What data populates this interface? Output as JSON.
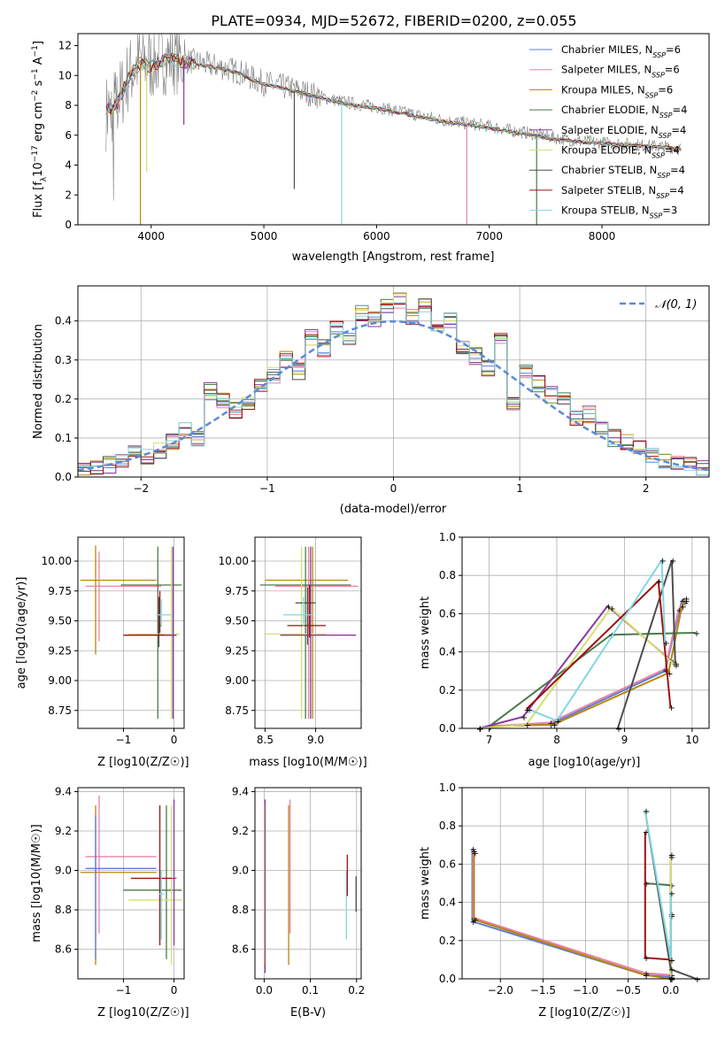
{
  "chart_data": [
    {
      "id": "spectrum",
      "type": "line",
      "title": "PLATE=0934, MJD=52672, FIBERID=0200, z=0.055",
      "xlabel": "wavelength [Angstrom, rest frame]",
      "ylabel": "Flux [f_λ 10^-17 erg cm^-2 s^-1 A^-1]",
      "xlim": [
        3350,
        8950
      ],
      "ylim": [
        0,
        12.8
      ],
      "xticks": [
        4000,
        5000,
        6000,
        7000,
        8000
      ],
      "yticks": [
        0,
        2,
        4,
        6,
        8,
        10,
        12
      ],
      "grid": false,
      "legend_position": "top-right",
      "data_series": {
        "name": "",
        "color": "#808080",
        "x": [
          3600,
          3700,
          3800,
          3900,
          4000,
          4100,
          4200,
          4300,
          4400,
          4500,
          4600,
          4700,
          4800,
          4900,
          5000,
          5200,
          5400,
          5600,
          5800,
          6000,
          6200,
          6400,
          6600,
          6800,
          7000,
          7200,
          7400,
          7600,
          7800,
          8000,
          8200,
          8400,
          8600,
          8700
        ],
        "y": [
          7.5,
          8.2,
          10.0,
          11.0,
          10.8,
          11.2,
          11.3,
          11.0,
          10.9,
          10.7,
          10.6,
          10.4,
          10.2,
          9.8,
          9.5,
          9.2,
          8.8,
          8.4,
          8.1,
          7.9,
          7.6,
          7.3,
          7.0,
          6.8,
          6.6,
          6.3,
          6.1,
          5.8,
          5.6,
          5.5,
          5.4,
          5.3,
          5.2,
          5.1
        ]
      },
      "model_x": [
        3600,
        3700,
        3800,
        3900,
        4000,
        4100,
        4200,
        4300,
        4400,
        4500,
        4600,
        4700,
        4800,
        4900,
        5000,
        5200,
        5400,
        5600,
        5800,
        6000,
        6200,
        6400,
        6600,
        6800,
        7000,
        7200,
        7400,
        7600,
        7800,
        8000,
        8200,
        8400,
        8600,
        8700
      ],
      "model_y": [
        7.6,
        8.1,
        9.9,
        10.8,
        10.6,
        11.0,
        11.1,
        10.9,
        10.8,
        10.6,
        10.5,
        10.3,
        10.1,
        9.7,
        9.4,
        9.1,
        8.7,
        8.3,
        8.0,
        7.8,
        7.5,
        7.2,
        6.9,
        6.7,
        6.5,
        6.2,
        6.0,
        5.7,
        5.55,
        5.45,
        5.35,
        5.25,
        5.15,
        5.05
      ],
      "series": [
        {
          "name": "Chabrier MILES, N_SSP=6",
          "color": "#5b7ed6",
          "base": "Chabrier MILES, N",
          "sub": "SSP",
          "rest": "=6"
        },
        {
          "name": "Salpeter MILES, N_SSP=6",
          "color": "#e882a8",
          "base": "Salpeter MILES, N",
          "sub": "SSP",
          "rest": "=6"
        },
        {
          "name": "Kroupa MILES, N_SSP=6",
          "color": "#b8860b",
          "base": "Kroupa MILES, N",
          "sub": "SSP",
          "rest": "=6"
        },
        {
          "name": "Chabrier ELODIE, N_SSP=4",
          "color": "#4a7a4a",
          "base": "Chabrier ELODIE, N",
          "sub": "SSP",
          "rest": "=4"
        },
        {
          "name": "Salpeter ELODIE, N_SSP=4",
          "color": "#8b3a9b",
          "base": "Salpeter ELODIE, N",
          "sub": "SSP",
          "rest": "=4"
        },
        {
          "name": "Kroupa ELODIE, N_SSP=4",
          "color": "#d4e070",
          "base": "Kroupa ELODIE, N",
          "sub": "SSP",
          "rest": "=4"
        },
        {
          "name": "Chabrier STELIB, N_SSP=4",
          "color": "#4d4d4d",
          "base": "Chabrier STELIB, N",
          "sub": "SSP",
          "rest": "=4"
        },
        {
          "name": "Salpeter STELIB, N_SSP=4",
          "color": "#a01010",
          "base": "Salpeter STELIB, N",
          "sub": "SSP",
          "rest": "=4"
        },
        {
          "name": "Kroupa STELIB, N_SSP=3",
          "color": "#80d8e0",
          "base": "Kroupa STELIB, N",
          "sub": "SSP",
          "rest": "=3"
        }
      ]
    },
    {
      "id": "residuals",
      "type": "bar",
      "title": "",
      "xlabel": "(data-model)/error",
      "ylabel": "Normed distribution",
      "xlim": [
        -2.5,
        2.5
      ],
      "ylim": [
        0,
        0.49
      ],
      "xticks": [
        -2,
        -1,
        0,
        1,
        2
      ],
      "yticks": [
        0.0,
        0.1,
        0.2,
        0.3,
        0.4
      ],
      "grid": true,
      "legend": "𝒩(0, 1)",
      "legend_position": "top-right",
      "bins": [
        -2.5,
        -2.4,
        -2.3,
        -2.2,
        -2.1,
        -2.0,
        -1.9,
        -1.8,
        -1.7,
        -1.6,
        -1.5,
        -1.4,
        -1.3,
        -1.2,
        -1.1,
        -1.0,
        -0.9,
        -0.8,
        -0.7,
        -0.6,
        -0.5,
        -0.4,
        -0.3,
        -0.2,
        -0.1,
        0.0,
        0.1,
        0.2,
        0.3,
        0.4,
        0.5,
        0.6,
        0.7,
        0.8,
        0.9,
        1.0,
        1.1,
        1.2,
        1.3,
        1.4,
        1.5,
        1.6,
        1.7,
        1.8,
        1.9,
        2.0,
        2.1,
        2.2,
        2.3,
        2.4
      ],
      "hist_values": [
        0.02,
        0.03,
        0.03,
        0.04,
        0.06,
        0.05,
        0.07,
        0.09,
        0.12,
        0.1,
        0.22,
        0.2,
        0.17,
        0.19,
        0.23,
        0.26,
        0.3,
        0.27,
        0.36,
        0.33,
        0.38,
        0.36,
        0.42,
        0.4,
        0.44,
        0.45,
        0.41,
        0.44,
        0.38,
        0.4,
        0.33,
        0.31,
        0.28,
        0.36,
        0.19,
        0.27,
        0.24,
        0.21,
        0.2,
        0.15,
        0.16,
        0.12,
        0.1,
        0.09,
        0.08,
        0.06,
        0.04,
        0.04,
        0.03,
        0.02
      ],
      "normal_curve": "N(0,1)"
    },
    {
      "id": "age-vs-Z",
      "type": "scatter",
      "xlabel": "Z [log10(Z/Z☉)]",
      "ylabel": "age [log10(age/yr)]",
      "xlim": [
        -1.9,
        0.2
      ],
      "ylim": [
        8.6,
        10.2
      ],
      "xticks": [
        -1,
        0
      ],
      "yticks": [
        8.75,
        9.0,
        9.25,
        9.5,
        9.75,
        10.0
      ],
      "grid": true
    },
    {
      "id": "age-vs-mass",
      "type": "scatter",
      "xlabel": "mass [log10(M/M☉)]",
      "ylabel": "",
      "xlim": [
        8.4,
        9.45
      ],
      "ylim": [
        8.6,
        10.2
      ],
      "xticks": [
        8.5,
        9.0
      ],
      "yticks": [
        8.75,
        9.0,
        9.25,
        9.5,
        9.75,
        10.0
      ],
      "grid": true
    },
    {
      "id": "weight-vs-age",
      "type": "line",
      "xlabel": "age [log10(age/yr)]",
      "ylabel": "mass weight",
      "xlim": [
        6.6,
        10.25
      ],
      "ylim": [
        0.0,
        1.0
      ],
      "xticks": [
        7,
        8,
        9,
        10
      ],
      "yticks": [
        0.0,
        0.2,
        0.4,
        0.6,
        0.8,
        1.0
      ],
      "grid": true
    },
    {
      "id": "mass-vs-Z",
      "type": "scatter",
      "xlabel": "Z [log10(Z/Z☉)]",
      "ylabel": "mass [log10(M/M☉)]",
      "xlim": [
        -1.9,
        0.2
      ],
      "ylim": [
        8.45,
        9.42
      ],
      "xticks": [
        -1,
        0
      ],
      "yticks": [
        8.6,
        8.8,
        9.0,
        9.2,
        9.4
      ],
      "grid": true
    },
    {
      "id": "mass-vs-ebv",
      "type": "scatter",
      "xlabel": "E(B-V)",
      "ylabel": "",
      "xlim": [
        -0.02,
        0.21
      ],
      "ylim": [
        8.45,
        9.42
      ],
      "xticks": [
        0.0,
        0.1,
        0.2
      ],
      "yticks": [
        8.6,
        8.8,
        9.0,
        9.2,
        9.4
      ],
      "grid": true
    },
    {
      "id": "weight-vs-Z",
      "type": "line",
      "xlabel": "Z [log10(Z/Z☉)]",
      "ylabel": "mass weight",
      "xlim": [
        -2.45,
        0.45
      ],
      "ylim": [
        0.0,
        1.0
      ],
      "xticks": [
        -2.0,
        -1.5,
        -1.0,
        -0.5,
        0.0
      ],
      "yticks": [
        0.0,
        0.2,
        0.4,
        0.6,
        0.8,
        1.0
      ],
      "grid": true
    }
  ]
}
